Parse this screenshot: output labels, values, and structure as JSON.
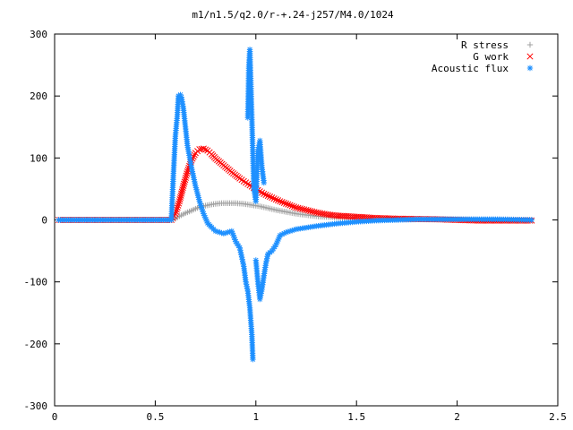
{
  "chart_data": {
    "type": "scatter",
    "title": "m1/n1.5/q2.0/r-+.24-j257/M4.0/1024",
    "xlabel": "",
    "ylabel": "",
    "xlim": [
      0,
      2.5
    ],
    "ylim": [
      -300,
      300
    ],
    "x_ticks": [
      "0",
      "0.5",
      "1",
      "1.5",
      "2",
      "2.5"
    ],
    "y_ticks": [
      "300",
      "200",
      "100",
      "0",
      "-100",
      "-200",
      "-300"
    ],
    "grid": false,
    "legend_position": "top-right",
    "series": [
      {
        "name": "R stress",
        "marker": "+",
        "color": "#a0a0a0",
        "points": [
          [
            0.02,
            0
          ],
          [
            0.2,
            0
          ],
          [
            0.4,
            0
          ],
          [
            0.58,
            0
          ],
          [
            0.6,
            2
          ],
          [
            0.62,
            6
          ],
          [
            0.65,
            11
          ],
          [
            0.68,
            15
          ],
          [
            0.7,
            18
          ],
          [
            0.72,
            21
          ],
          [
            0.75,
            23
          ],
          [
            0.78,
            25
          ],
          [
            0.8,
            26
          ],
          [
            0.83,
            27
          ],
          [
            0.86,
            27
          ],
          [
            0.9,
            27
          ],
          [
            0.94,
            26
          ],
          [
            0.98,
            24
          ],
          [
            1.02,
            22
          ],
          [
            1.06,
            19
          ],
          [
            1.1,
            16
          ],
          [
            1.15,
            13
          ],
          [
            1.2,
            10
          ],
          [
            1.25,
            8
          ],
          [
            1.3,
            6
          ],
          [
            1.35,
            5
          ],
          [
            1.4,
            4
          ],
          [
            1.5,
            3
          ],
          [
            1.6,
            2
          ],
          [
            1.8,
            1
          ],
          [
            2.0,
            1
          ],
          [
            2.2,
            0
          ],
          [
            2.37,
            0
          ]
        ]
      },
      {
        "name": "G work",
        "marker": "×",
        "color": "#ff0000",
        "points": [
          [
            0.02,
            0
          ],
          [
            0.2,
            0
          ],
          [
            0.4,
            0
          ],
          [
            0.58,
            0
          ],
          [
            0.6,
            10
          ],
          [
            0.62,
            30
          ],
          [
            0.64,
            55
          ],
          [
            0.66,
            78
          ],
          [
            0.68,
            96
          ],
          [
            0.7,
            108
          ],
          [
            0.72,
            114
          ],
          [
            0.74,
            115
          ],
          [
            0.76,
            112
          ],
          [
            0.78,
            106
          ],
          [
            0.8,
            99
          ],
          [
            0.84,
            88
          ],
          [
            0.88,
            77
          ],
          [
            0.92,
            67
          ],
          [
            0.96,
            58
          ],
          [
            1.0,
            50
          ],
          [
            1.04,
            42
          ],
          [
            1.08,
            36
          ],
          [
            1.12,
            30
          ],
          [
            1.16,
            25
          ],
          [
            1.2,
            20
          ],
          [
            1.25,
            16
          ],
          [
            1.3,
            12
          ],
          [
            1.35,
            9
          ],
          [
            1.4,
            7
          ],
          [
            1.5,
            5
          ],
          [
            1.6,
            3
          ],
          [
            1.7,
            2
          ],
          [
            1.9,
            1
          ],
          [
            2.1,
            -1
          ],
          [
            2.3,
            -1
          ],
          [
            2.37,
            -1
          ]
        ]
      },
      {
        "name": "Acoustic flux",
        "marker": "*",
        "color": "#1e90ff",
        "points": [
          [
            0.02,
            0
          ],
          [
            0.2,
            0
          ],
          [
            0.4,
            0
          ],
          [
            0.58,
            0
          ],
          [
            0.59,
            72
          ],
          [
            0.6,
            135
          ],
          [
            0.61,
            170
          ],
          [
            0.615,
            200
          ],
          [
            0.625,
            202
          ],
          [
            0.63,
            198
          ],
          [
            0.64,
            180
          ],
          [
            0.65,
            150
          ],
          [
            0.66,
            120
          ],
          [
            0.68,
            85
          ],
          [
            0.7,
            55
          ],
          [
            0.72,
            30
          ],
          [
            0.74,
            10
          ],
          [
            0.76,
            -5
          ],
          [
            0.78,
            -12
          ],
          [
            0.8,
            -18
          ],
          [
            0.82,
            -20
          ],
          [
            0.84,
            -22
          ],
          [
            0.86,
            -20
          ],
          [
            0.88,
            -18
          ],
          [
            0.9,
            -35
          ],
          [
            0.92,
            -45
          ],
          [
            0.93,
            -60
          ],
          [
            0.94,
            -75
          ],
          [
            0.95,
            -100
          ],
          [
            0.96,
            -115
          ],
          [
            0.97,
            -142
          ],
          [
            0.98,
            -185
          ],
          [
            0.985,
            -225
          ],
          [
            0.96,
            165
          ],
          [
            0.965,
            248
          ],
          [
            0.97,
            275
          ],
          [
            0.975,
            222
          ],
          [
            0.99,
            50
          ],
          [
            1.0,
            30
          ],
          [
            1.01,
            110
          ],
          [
            1.02,
            128
          ],
          [
            1.03,
            85
          ],
          [
            1.04,
            60
          ],
          [
            1.0,
            -65
          ],
          [
            1.01,
            -100
          ],
          [
            1.02,
            -128
          ],
          [
            1.03,
            -112
          ],
          [
            1.04,
            -90
          ],
          [
            1.05,
            -70
          ],
          [
            1.06,
            -55
          ],
          [
            1.08,
            -50
          ],
          [
            1.1,
            -40
          ],
          [
            1.12,
            -25
          ],
          [
            1.15,
            -20
          ],
          [
            1.2,
            -15
          ],
          [
            1.3,
            -10
          ],
          [
            1.4,
            -6
          ],
          [
            1.5,
            -3
          ],
          [
            1.6,
            -1
          ],
          [
            1.8,
            1
          ],
          [
            2.0,
            1
          ],
          [
            2.2,
            1
          ],
          [
            2.37,
            0
          ]
        ]
      }
    ]
  }
}
